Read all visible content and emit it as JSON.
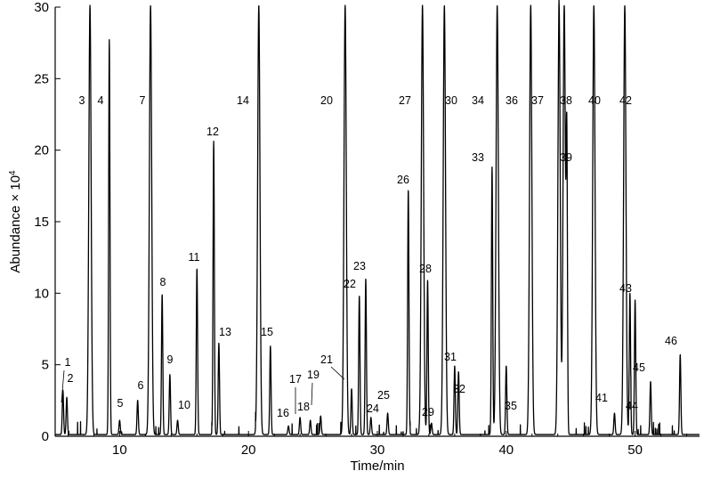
{
  "chart_data": {
    "type": "line",
    "xlabel": "Time/min",
    "ylabel": "Abundance × 10",
    "ylabel_exponent": "4",
    "xlim": [
      5,
      55
    ],
    "ylim": [
      0,
      30
    ],
    "xticks": [
      10,
      20,
      30,
      40,
      50
    ],
    "yticks": [
      0,
      5,
      10,
      15,
      20,
      25,
      30
    ],
    "grid": false,
    "peaks": [
      {
        "label": "1",
        "x": 5.6,
        "y": 3.1
      },
      {
        "label": "2",
        "x": 5.9,
        "y": 2.6
      },
      {
        "label": "3",
        "x": 7.7,
        "y": 30
      },
      {
        "label": "4",
        "x": 9.2,
        "y": 27.6
      },
      {
        "label": "5",
        "x": 10.0,
        "y": 1.0
      },
      {
        "label": "6",
        "x": 11.4,
        "y": 2.4
      },
      {
        "label": "7",
        "x": 12.4,
        "y": 30
      },
      {
        "label": "8",
        "x": 13.3,
        "y": 9.8
      },
      {
        "label": "9",
        "x": 13.9,
        "y": 4.2
      },
      {
        "label": "10",
        "x": 14.5,
        "y": 1.0
      },
      {
        "label": "11",
        "x": 16.0,
        "y": 11.6
      },
      {
        "label": "12",
        "x": 17.3,
        "y": 20.5
      },
      {
        "label": "13",
        "x": 17.7,
        "y": 6.4
      },
      {
        "label": "14",
        "x": 20.8,
        "y": 30
      },
      {
        "label": "15",
        "x": 21.7,
        "y": 6.2
      },
      {
        "label": "16",
        "x": 23.1,
        "y": 0.6
      },
      {
        "label": "17",
        "x": 24.0,
        "y": 1.2
      },
      {
        "label": "18",
        "x": 24.8,
        "y": 1.0
      },
      {
        "label": "19",
        "x": 25.6,
        "y": 1.3
      },
      {
        "label": "20",
        "x": 27.5,
        "y": 30
      },
      {
        "label": "21",
        "x": 28.0,
        "y": 3.2
      },
      {
        "label": "22",
        "x": 28.6,
        "y": 9.7
      },
      {
        "label": "23",
        "x": 29.1,
        "y": 10.9
      },
      {
        "label": "24",
        "x": 29.5,
        "y": 1.2
      },
      {
        "label": "25",
        "x": 30.8,
        "y": 1.5
      },
      {
        "label": "26",
        "x": 32.4,
        "y": 17.1
      },
      {
        "label": "27",
        "x": 33.5,
        "y": 30
      },
      {
        "label": "28",
        "x": 33.9,
        "y": 10.8
      },
      {
        "label": "29",
        "x": 34.2,
        "y": 0.8
      },
      {
        "label": "30",
        "x": 35.2,
        "y": 30
      },
      {
        "label": "31",
        "x": 36.0,
        "y": 4.8
      },
      {
        "label": "32",
        "x": 36.3,
        "y": 4.4
      },
      {
        "label": "33",
        "x": 38.9,
        "y": 18.7
      },
      {
        "label": "34",
        "x": 39.3,
        "y": 30
      },
      {
        "label": "35",
        "x": 40.0,
        "y": 4.8
      },
      {
        "label": "36",
        "x": 41.9,
        "y": 30
      },
      {
        "label": "37",
        "x": 44.1,
        "y": 30
      },
      {
        "label": "38",
        "x": 44.5,
        "y": 30
      },
      {
        "label": "39",
        "x": 44.7,
        "y": 19.8
      },
      {
        "label": "40",
        "x": 46.8,
        "y": 30
      },
      {
        "label": "41",
        "x": 48.4,
        "y": 1.5
      },
      {
        "label": "42",
        "x": 49.2,
        "y": 30
      },
      {
        "label": "43",
        "x": 49.6,
        "y": 9.9
      },
      {
        "label": "44",
        "x": 50.0,
        "y": 9.4
      },
      {
        "label": "45",
        "x": 51.2,
        "y": 3.7
      },
      {
        "label": "46",
        "x": 53.5,
        "y": 5.6
      }
    ]
  }
}
